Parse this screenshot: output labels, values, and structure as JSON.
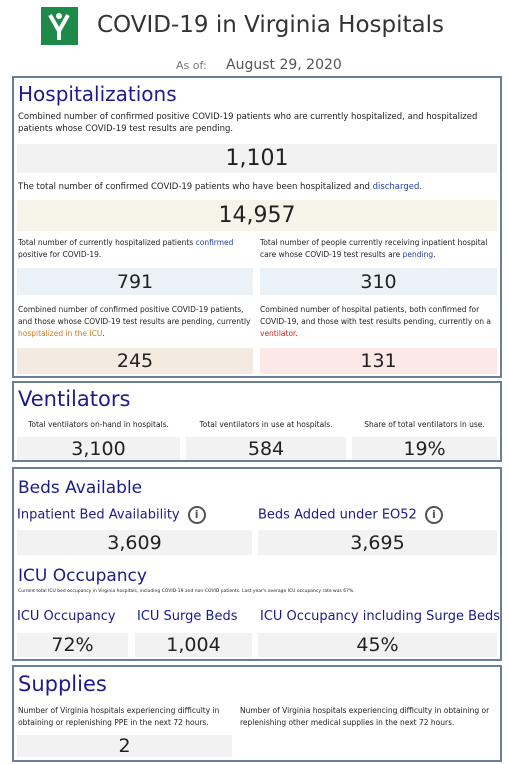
{
  "header": {
    "title": "COVID-19 in Virginia Hospitals",
    "as_of_label": "As of:",
    "date": "August 29, 2020"
  },
  "hospitalizations": {
    "title": "Hospitalizations",
    "current": {
      "description": [
        "Combined number of ",
        "confirmed",
        " positive COVID-19 patients who are currently hospitalized, and hospitalized patients whose COVID-19 test results are pending."
      ],
      "value": "1,101"
    },
    "total": {
      "description": [
        "The total number of confirmed COVID-19 patients who have been hospitalized and ",
        "discharged",
        "."
      ],
      "value": "14,957"
    },
    "confirmed": {
      "description": [
        "Total number of currently hospitalized patients ",
        "confirmed",
        " positive for COVID-19."
      ],
      "value": "791"
    },
    "pending": {
      "description": [
        "Total number of people currently receiving inpatient hospital care whose COVID-19 test results are ",
        "pending",
        "."
      ],
      "value": "310"
    },
    "icu": {
      "description": [
        "Combined number of confirmed positive COVID-19 patients, and those whose COVID-19 test results are pending, currently ",
        "hospitalized in the ICU",
        "."
      ],
      "value": "245"
    },
    "ventilator": {
      "description": [
        "Combined number of hospital patients, both confirmed for COVID-19, and those with test results pending, currently on a ",
        "ventilator",
        "."
      ],
      "value": "131"
    }
  },
  "ventilators": {
    "title": "Ventilators",
    "items": [
      {
        "label": "Total ventilators on-hand in hospitals.",
        "value": "3,100"
      },
      {
        "label": "Total ventilators in use at hospitals.",
        "value": "584"
      },
      {
        "label": "Share of total ventilators in use.",
        "value": "19%"
      }
    ]
  },
  "beds": {
    "title": "Beds Available",
    "items": [
      {
        "label": "Inpatient Bed Availability",
        "value": "3,609"
      },
      {
        "label": "Beds Added under EO52",
        "value": "3,695"
      }
    ],
    "icu_title": "ICU Occupancy",
    "icu_note": "Current total ICU bed occupancy in Virginia hospitals, including COVID-19 and non-COVID patients. Last year's average ICU occupancy rate was 67%.",
    "icu_items": [
      {
        "label": "ICU Occupancy",
        "value": "72%"
      },
      {
        "label": "ICU Surge Beds",
        "value": "1,004"
      },
      {
        "label": "ICU Occupancy including Surge Beds",
        "value": "45%"
      }
    ]
  },
  "supplies": {
    "title": "Supplies",
    "items": [
      {
        "label": "Number of Virginia hospitals experiencing difficulty in obtaining or replenishing PPE in the next 72 hours.",
        "value": "2"
      },
      {
        "label": "Number of Virginia hospitals experiencing difficulty in obtaining or replenishing other medical supplies in the next 72 hours."
      }
    ]
  }
}
